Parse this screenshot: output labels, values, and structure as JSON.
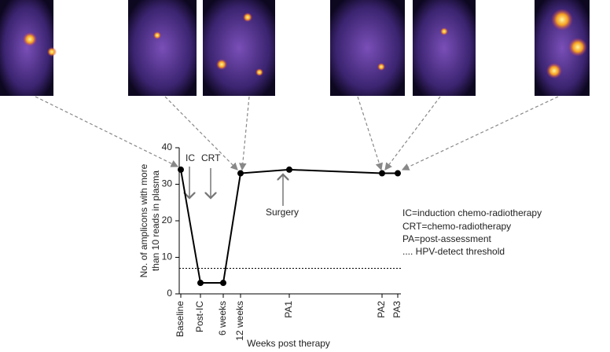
{
  "chart_data": {
    "type": "line",
    "x_label": "Weeks post therapy",
    "y_label": [
      "No. of amplicons with more",
      "than 10 reads in plasma"
    ],
    "categories": [
      "Baseline",
      "Post-IC",
      "6 weeks",
      "12 weeks",
      "PA1",
      "PA2",
      "PA3"
    ],
    "values": [
      34,
      3,
      3,
      33,
      34,
      33,
      33
    ],
    "color": "#000000",
    "ylim": [
      0,
      40
    ],
    "yticks": [
      0,
      10,
      20,
      30,
      40
    ],
    "threshold": 7,
    "annotations": [
      "IC",
      "CRT",
      "Surgery"
    ],
    "notes": [
      "IC=induction chemo-radiotherapy",
      "CRT=chemo-radiotherapy",
      "PA=post-assessment",
      ".... HPV-detect threshold"
    ]
  }
}
